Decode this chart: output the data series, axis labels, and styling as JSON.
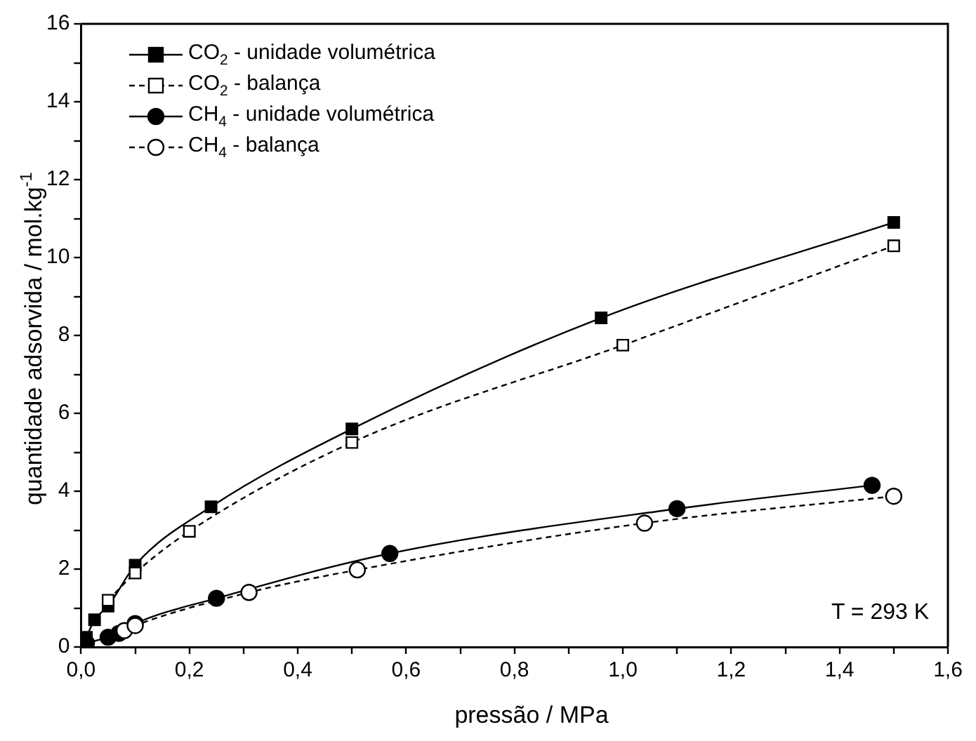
{
  "chart_data": {
    "type": "line",
    "xlabel": "pressão / MPa",
    "ylabel": "quantidade adsorvida / mol.kg$^{-1}$",
    "xlim": [
      0,
      1.6
    ],
    "ylim": [
      0,
      16
    ],
    "xticks": [
      {
        "value": 0,
        "label": "0,0"
      },
      {
        "value": 0.1,
        "label": null
      },
      {
        "value": 0.2,
        "label": "0,2"
      },
      {
        "value": 0.3,
        "label": null
      },
      {
        "value": 0.4,
        "label": "0,4"
      },
      {
        "value": 0.5,
        "label": null
      },
      {
        "value": 0.6,
        "label": "0,6"
      },
      {
        "value": 0.7,
        "label": null
      },
      {
        "value": 0.8,
        "label": "0,8"
      },
      {
        "value": 0.9,
        "label": null
      },
      {
        "value": 1.0,
        "label": "1,0"
      },
      {
        "value": 1.1,
        "label": null
      },
      {
        "value": 1.2,
        "label": "1,2"
      },
      {
        "value": 1.3,
        "label": null
      },
      {
        "value": 1.4,
        "label": "1,4"
      },
      {
        "value": 1.5,
        "label": null
      },
      {
        "value": 1.6,
        "label": "1,6"
      }
    ],
    "yticks": [
      0,
      {
        "value": 1,
        "label": null
      },
      2,
      {
        "value": 3,
        "label": null
      },
      4,
      {
        "value": 5,
        "label": null
      },
      6,
      {
        "value": 7,
        "label": null
      },
      8,
      {
        "value": 9,
        "label": null
      },
      10,
      {
        "value": 11,
        "label": null
      },
      12,
      {
        "value": 13,
        "label": null
      },
      14,
      {
        "value": 15,
        "label": null
      },
      16
    ],
    "grid": false,
    "legend": "top left",
    "annotations": [
      "T = 293 K"
    ],
    "series": [
      {
        "name": "CO$_{2}$ - unidade volumétrica",
        "color": "#000000",
        "marker": "square",
        "line_style": "solid",
        "x": [
          0.01,
          0.025,
          0.05,
          0.1,
          0.24,
          0.5,
          0.96,
          1.5
        ],
        "values": [
          0.25,
          0.7,
          1.05,
          2.1,
          3.6,
          5.6,
          8.45,
          10.9
        ]
      },
      {
        "name": "CO$_{2}$ - balança",
        "color": "#000000",
        "marker": "square",
        "line_style": "dashed",
        "x": [
          0.05,
          0.1,
          0.2,
          0.5,
          1.0,
          1.5
        ],
        "values": [
          1.2,
          1.9,
          2.97,
          5.25,
          7.75,
          10.3
        ]
      },
      {
        "name": "CH$_{4}$ - unidade volumétrica",
        "color": "#000000",
        "marker": "circle",
        "line_style": "solid",
        "x": [
          0.01,
          0.05,
          0.07,
          0.1,
          0.25,
          0.57,
          1.1,
          1.46
        ],
        "values": [
          0.1,
          0.25,
          0.35,
          0.6,
          1.25,
          2.4,
          3.55,
          4.15
        ]
      },
      {
        "name": "CH$_{4}$ - balança",
        "color": "#000000",
        "marker": "circle",
        "line_style": "dashed",
        "x": [
          0.08,
          0.1,
          0.31,
          0.51,
          1.04,
          1.5
        ],
        "values": [
          0.42,
          0.55,
          1.4,
          1.98,
          3.18,
          3.87
        ]
      }
    ]
  }
}
